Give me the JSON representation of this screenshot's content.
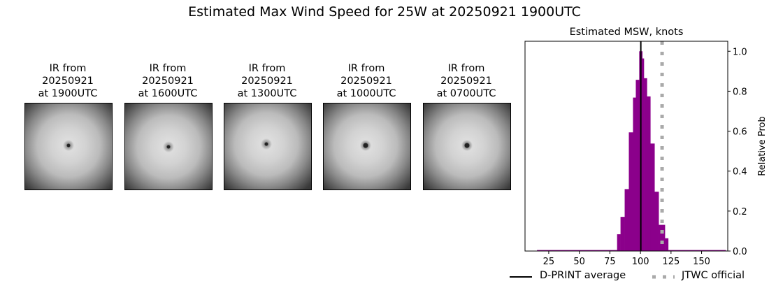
{
  "title": "Estimated Max Wind Speed for 25W at 20250921 1900UTC",
  "ir_panels": [
    {
      "line1": "IR from",
      "line2": "20250921",
      "line3": "at 1900UTC"
    },
    {
      "line1": "IR from",
      "line2": "20250921",
      "line3": "at 1600UTC"
    },
    {
      "line1": "IR from",
      "line2": "20250921",
      "line3": "at 1300UTC"
    },
    {
      "line1": "IR from",
      "line2": "20250921",
      "line3": "at 1000UTC"
    },
    {
      "line1": "IR from",
      "line2": "20250921",
      "line3": "at 0700UTC"
    }
  ],
  "chart_data": {
    "type": "bar",
    "title": "Estimated MSW, knots",
    "xlabel": "",
    "ylabel": "Relative Prob",
    "xlim": [
      5.6,
      171.4
    ],
    "ylim": [
      0,
      1.05
    ],
    "xticks": [
      25,
      50,
      75,
      100,
      125,
      150
    ],
    "yticks": [
      0.0,
      0.2,
      0.4,
      0.6,
      0.8,
      1.0
    ],
    "ytick_labels": [
      "0.0",
      "0.2",
      "0.4",
      "0.6",
      "0.8",
      "1.0"
    ],
    "yaxis_side": "right",
    "bar_color": "#8b008b",
    "bins": [
      {
        "x0": 15.4,
        "x1": 80.9,
        "value": 0.005
      },
      {
        "x0": 80.9,
        "x1": 83.7,
        "value": 0.084
      },
      {
        "x0": 83.7,
        "x1": 87.1,
        "value": 0.171
      },
      {
        "x0": 87.1,
        "x1": 90.5,
        "value": 0.31
      },
      {
        "x0": 90.5,
        "x1": 93.9,
        "value": 0.594
      },
      {
        "x0": 93.9,
        "x1": 96.2,
        "value": 0.768
      },
      {
        "x0": 96.2,
        "x1": 99.0,
        "value": 0.857
      },
      {
        "x0": 99.0,
        "x1": 101.5,
        "value": 1.0
      },
      {
        "x0": 101.5,
        "x1": 102.8,
        "value": 0.964
      },
      {
        "x0": 102.8,
        "x1": 105.3,
        "value": 0.865
      },
      {
        "x0": 105.3,
        "x1": 108.1,
        "value": 0.774
      },
      {
        "x0": 108.1,
        "x1": 111.5,
        "value": 0.538
      },
      {
        "x0": 111.5,
        "x1": 114.9,
        "value": 0.297
      },
      {
        "x0": 114.9,
        "x1": 120.0,
        "value": 0.131
      },
      {
        "x0": 120.0,
        "x1": 122.7,
        "value": 0.064
      },
      {
        "x0": 122.7,
        "x1": 169.7,
        "value": 0.005
      }
    ],
    "lines": [
      {
        "name": "D-PRINT average",
        "x": 100.3,
        "color": "#000000",
        "style": "solid"
      },
      {
        "name": "JTWC official",
        "x": 117.7,
        "color": "#aaaaaa",
        "style": "dotted"
      }
    ],
    "legend_placement": "bottom"
  }
}
